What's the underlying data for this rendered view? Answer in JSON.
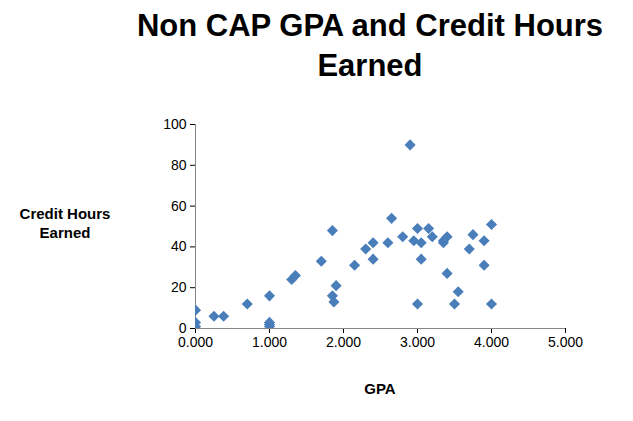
{
  "chart_data": {
    "type": "scatter",
    "title": "Non CAP GPA and Credit Hours Earned",
    "x_label": "GPA",
    "y_label": "Credit Hours Earned",
    "x": [
      0,
      0,
      0,
      0,
      0.25,
      0.38,
      0.7,
      1.0,
      1.0,
      1.0,
      1.0,
      1.3,
      1.35,
      1.7,
      1.85,
      1.85,
      1.87,
      1.9,
      2.15,
      2.3,
      2.4,
      2.4,
      2.6,
      2.65,
      2.8,
      2.95,
      2.9,
      3.0,
      3.05,
      3.05,
      3.0,
      3.15,
      3.2,
      3.35,
      3.35,
      3.4,
      3.4,
      3.55,
      3.5,
      3.75,
      3.7,
      3.9,
      3.9,
      4.0,
      4.0
    ],
    "values": [
      9,
      3,
      0,
      1,
      6,
      6,
      12,
      16,
      3,
      1,
      2,
      24,
      26,
      33,
      48,
      16,
      13,
      21,
      31,
      39,
      42,
      34,
      42,
      54,
      45,
      43,
      90,
      49,
      42,
      34,
      12,
      49,
      45,
      43,
      42,
      45,
      27,
      18,
      12,
      46,
      39,
      43,
      31,
      51,
      12
    ],
    "color": "#4a7ebb",
    "marker": "diamond",
    "grid": false,
    "xlim": [
      0,
      5
    ],
    "xticks": [
      {
        "value": 0,
        "label": "0.000"
      },
      {
        "value": 1,
        "label": "1.000"
      },
      {
        "value": 2,
        "label": "2.000"
      },
      {
        "value": 3,
        "label": "3.000"
      },
      {
        "value": 4,
        "label": "4.000"
      },
      {
        "value": 5,
        "label": "5.000"
      }
    ],
    "ylim": [
      0,
      100
    ],
    "yticks": [
      0,
      20,
      40,
      60,
      80,
      100
    ]
  }
}
